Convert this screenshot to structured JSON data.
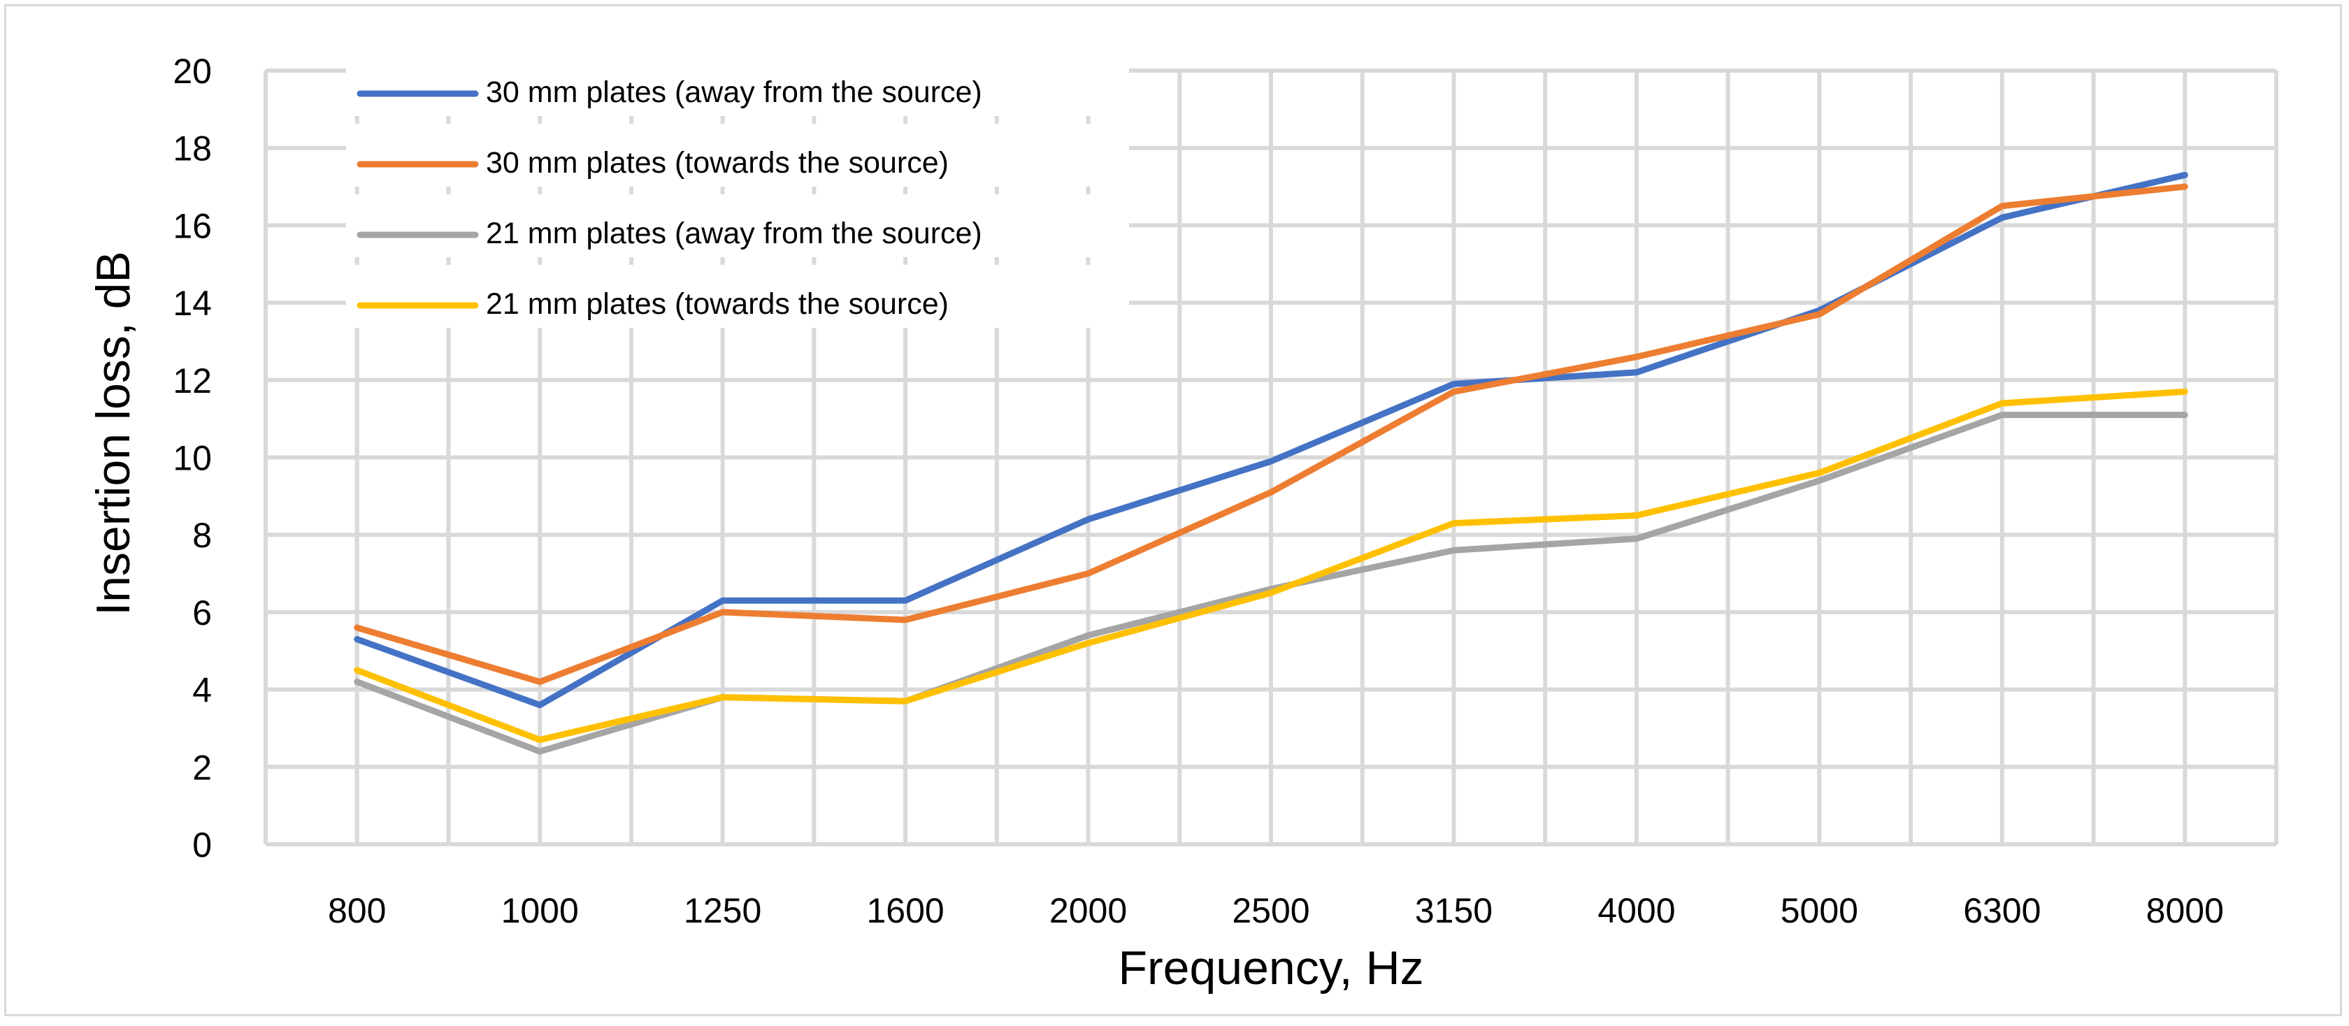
{
  "chart_data": {
    "type": "line",
    "categories": [
      "800",
      "1000",
      "1250",
      "1600",
      "2000",
      "2500",
      "3150",
      "4000",
      "5000",
      "6300",
      "8000"
    ],
    "series": [
      {
        "name": "30 mm plates (away from the source)",
        "color": "#4472c4",
        "values": [
          5.3,
          3.6,
          6.3,
          6.3,
          8.4,
          9.9,
          11.9,
          12.2,
          13.8,
          16.2,
          17.3
        ]
      },
      {
        "name": "30 mm plates (towards the source)",
        "color": "#ed7d31",
        "values": [
          5.6,
          4.2,
          6.0,
          5.8,
          7.0,
          9.1,
          11.7,
          12.6,
          13.7,
          16.5,
          17.0
        ]
      },
      {
        "name": "21 mm plates (away from the source)",
        "color": "#a5a5a5",
        "values": [
          4.2,
          2.4,
          3.8,
          3.7,
          5.4,
          6.6,
          7.6,
          7.9,
          9.4,
          11.1,
          11.1
        ]
      },
      {
        "name": "21 mm plates (towards the source)",
        "color": "#ffc000",
        "values": [
          4.5,
          2.7,
          3.8,
          3.7,
          5.2,
          6.5,
          8.3,
          8.5,
          9.6,
          11.4,
          11.7
        ]
      }
    ],
    "xlabel": "Frequency, Hz",
    "ylabel": "Insertion loss, dB",
    "ylim": [
      0,
      20
    ],
    "yticks": [
      "0",
      "2",
      "4",
      "6",
      "8",
      "10",
      "12",
      "14",
      "16",
      "18",
      "20"
    ],
    "grid": true,
    "legend_position": "top-left"
  }
}
